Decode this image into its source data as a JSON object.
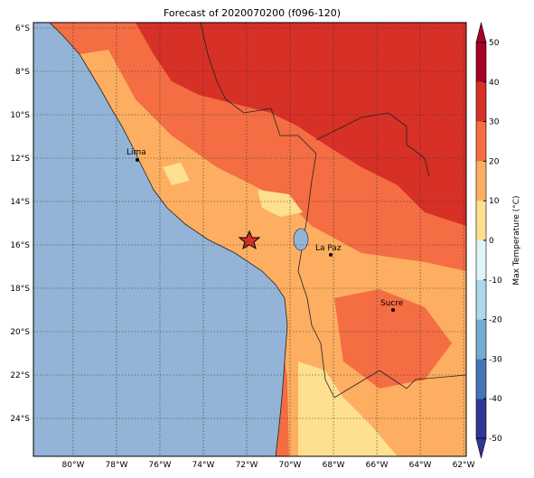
{
  "title": "Forecast of 2020070200 (f096-120)",
  "map": {
    "lonlim": [
      -81.83,
      -61.88
    ],
    "latlim": [
      -25.75,
      -5.75
    ],
    "lon_ticks": [
      {
        "value": -80,
        "label": "80°W"
      },
      {
        "value": -78,
        "label": "78°W"
      },
      {
        "value": -76,
        "label": "76°W"
      },
      {
        "value": -74,
        "label": "74°W"
      },
      {
        "value": -72,
        "label": "72°W"
      },
      {
        "value": -70,
        "label": "70°W"
      },
      {
        "value": -68,
        "label": "68°W"
      },
      {
        "value": -66,
        "label": "66°W"
      },
      {
        "value": -64,
        "label": "64°W"
      },
      {
        "value": -62,
        "label": "62°W"
      }
    ],
    "lat_ticks": [
      {
        "value": -6,
        "label": "6°S"
      },
      {
        "value": -8,
        "label": "8°S"
      },
      {
        "value": -10,
        "label": "10°S"
      },
      {
        "value": -12,
        "label": "12°S"
      },
      {
        "value": -14,
        "label": "14°S"
      },
      {
        "value": -16,
        "label": "16°S"
      },
      {
        "value": -18,
        "label": "18°S"
      },
      {
        "value": -20,
        "label": "20°S"
      },
      {
        "value": -22,
        "label": "22°S"
      },
      {
        "value": -24,
        "label": "24°S"
      }
    ],
    "cities": [
      "Lima",
      "La Paz",
      "Sucre"
    ]
  },
  "colorbar": {
    "label": "Max Temperature (°C)",
    "lim": [
      -50,
      50
    ],
    "ticks": [
      -50,
      -40,
      -30,
      -20,
      -10,
      0,
      10,
      20,
      30,
      40,
      50
    ],
    "colors": [
      "#313695",
      "#4575b4",
      "#74add1",
      "#abd9e9",
      "#e0f3f8",
      "#fee090",
      "#fdae61",
      "#f46d43",
      "#d73027",
      "#a50026"
    ]
  }
}
